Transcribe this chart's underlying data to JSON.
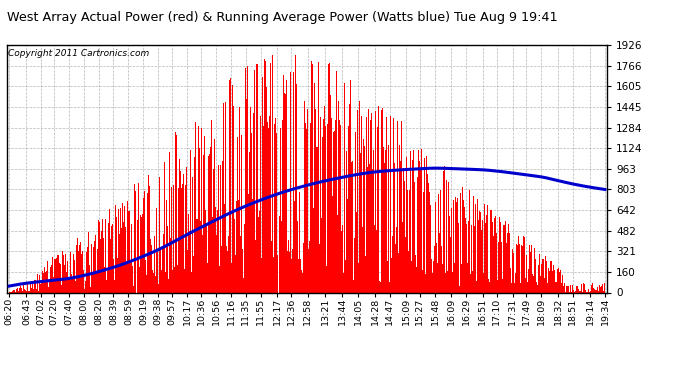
{
  "title": "West Array Actual Power (red) & Running Average Power (Watts blue) Tue Aug 9 19:41",
  "copyright": "Copyright 2011 Cartronics.com",
  "background_color": "#ffffff",
  "plot_bg_color": "#ffffff",
  "grid_color": "#999999",
  "bar_color": "#ff0000",
  "avg_color": "#0000cc",
  "yticks": [
    0.0,
    160.5,
    321.1,
    481.6,
    642.1,
    802.6,
    963.2,
    1123.7,
    1284.2,
    1444.8,
    1605.3,
    1765.8,
    1926.4
  ],
  "ymax": 1926.4,
  "xtick_labels": [
    "06:20",
    "06:43",
    "07:02",
    "07:20",
    "07:40",
    "08:00",
    "08:20",
    "08:39",
    "08:59",
    "09:19",
    "09:38",
    "09:57",
    "10:17",
    "10:36",
    "10:56",
    "11:16",
    "11:35",
    "11:55",
    "12:17",
    "12:36",
    "12:58",
    "13:21",
    "13:44",
    "14:05",
    "14:28",
    "14:47",
    "15:09",
    "15:27",
    "15:48",
    "16:09",
    "16:29",
    "16:51",
    "17:10",
    "17:31",
    "17:49",
    "18:09",
    "18:32",
    "18:51",
    "19:14",
    "19:34"
  ]
}
